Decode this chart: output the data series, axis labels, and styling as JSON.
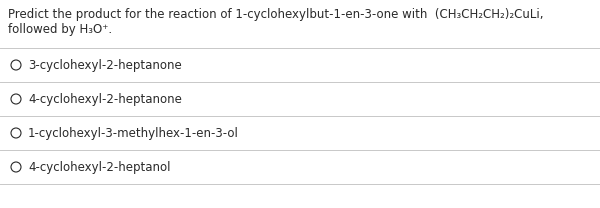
{
  "question_line1": "Predict the product for the reaction of 1-cyclohexylbut-1-en-3-one with  (CH₃CH₂CH₂)₂CuLi,",
  "question_line2": "followed by H₃O⁺.",
  "options": [
    "3-cyclohexyl-2-heptanone",
    "4-cyclohexyl-2-heptanone",
    "1-cyclohexyl-3-methylhex-1-en-3-ol",
    "4-cyclohexyl-2-heptanol"
  ],
  "bg_color": "#ffffff",
  "text_color": "#2a2a2a",
  "option_text_color": "#2a2a2a",
  "line_color": "#c8c8c8",
  "question_fontsize": 8.5,
  "option_fontsize": 8.5,
  "fig_width": 6.0,
  "fig_height": 2.08,
  "dpi": 100
}
